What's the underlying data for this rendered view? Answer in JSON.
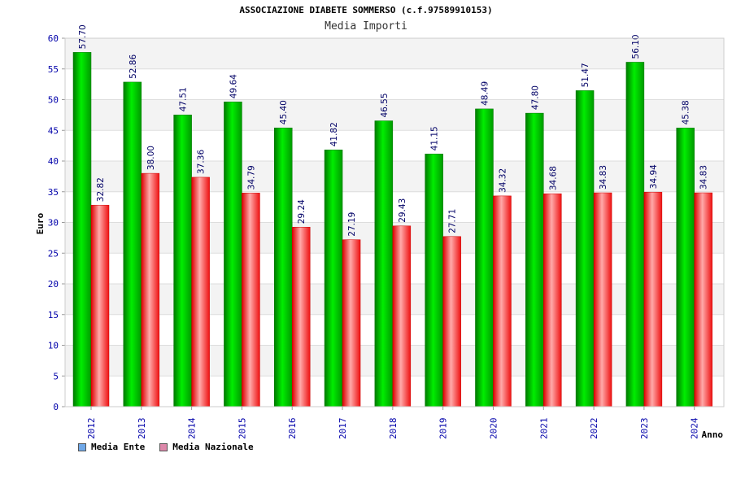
{
  "chart_data": {
    "type": "bar",
    "title": "ASSOCIAZIONE DIABETE SOMMERSO (c.f.97589910153)",
    "subtitle": "Media Importi",
    "xlabel": "Anno",
    "ylabel": "Euro",
    "ylim": [
      0,
      60
    ],
    "yticks": [
      0,
      5,
      10,
      15,
      20,
      25,
      30,
      35,
      40,
      45,
      50,
      55,
      60
    ],
    "categories": [
      "2012",
      "2013",
      "2014",
      "2015",
      "2016",
      "2017",
      "2018",
      "2019",
      "2020",
      "2021",
      "2022",
      "2023",
      "2024"
    ],
    "series": [
      {
        "name": "Media Ente",
        "color": "#00cc00",
        "legend_color": "#6fa8e8",
        "values": [
          57.7,
          52.86,
          47.51,
          49.64,
          45.4,
          41.82,
          46.55,
          41.15,
          48.49,
          47.8,
          51.47,
          56.1,
          45.38
        ],
        "labels": [
          "57.70",
          "52.86",
          "47.51",
          "49.64",
          "45.40",
          "41.82",
          "46.55",
          "41.15",
          "48.49",
          "47.80",
          "51.47",
          "56.10",
          "45.38"
        ]
      },
      {
        "name": "Media Nazionale",
        "color": "#ee0000",
        "legend_color": "#dd88aa",
        "values": [
          32.82,
          38.0,
          37.36,
          34.79,
          29.24,
          27.19,
          29.43,
          27.71,
          34.32,
          34.68,
          34.83,
          34.94,
          34.83
        ],
        "labels": [
          "32.82",
          "38.00",
          "37.36",
          "34.79",
          "29.24",
          "27.19",
          "29.43",
          "27.71",
          "34.32",
          "34.68",
          "34.83",
          "34.94",
          "34.83"
        ]
      }
    ],
    "grid": true,
    "legend_position": "bottom-left"
  }
}
